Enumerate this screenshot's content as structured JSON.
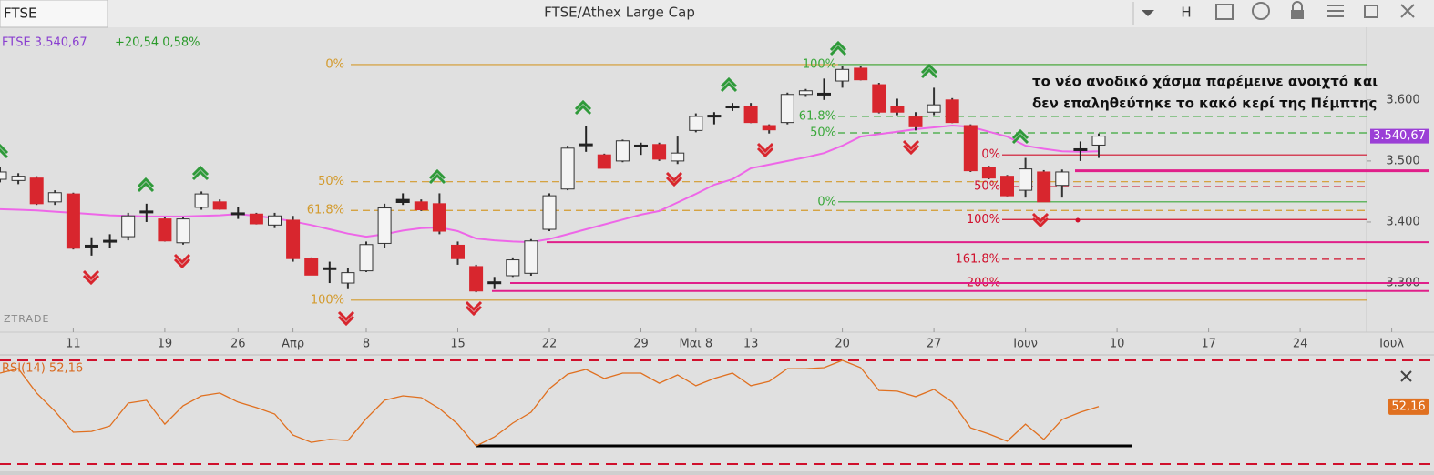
{
  "toolbar": {
    "tab": "FTSE",
    "title": "FTSE/Athex Large Cap",
    "button": "H"
  },
  "watermark": "ZTRADE",
  "chart_data": [
    {
      "type": "candlestick",
      "legend": {
        "symbol": "FTSE 3.540,67",
        "change": "+20,54 0,58%"
      },
      "categories": [
        null,
        null,
        null,
        null,
        "11",
        null,
        null,
        null,
        null,
        "19",
        null,
        null,
        null,
        "26",
        null,
        null,
        "Απρ",
        null,
        null,
        null,
        "8",
        null,
        null,
        null,
        null,
        "15",
        null,
        null,
        null,
        null,
        "22",
        null,
        null,
        null,
        null,
        "29",
        null,
        null,
        "Μαι 8",
        null,
        null,
        "13",
        null,
        null,
        null,
        null,
        "20",
        null,
        null,
        null,
        null,
        "27",
        null,
        null,
        null,
        null,
        "Ιουν",
        null,
        null,
        null,
        null,
        "10",
        null,
        null,
        null,
        null,
        "17",
        null,
        null,
        null,
        null,
        "24",
        null,
        null,
        null,
        null,
        "Ιουλ"
      ],
      "open": [
        3470,
        3468,
        3472,
        3433,
        3446,
        3362,
        3367,
        3376,
        3415,
        3405,
        3366,
        3424,
        3433,
        3415,
        3413,
        3395,
        3403,
        3340,
        3322,
        3300,
        3320,
        3365,
        3432,
        3433,
        3430,
        3362,
        3327,
        3300,
        3312,
        3316,
        3388,
        3454,
        3525,
        3510,
        3500,
        3524,
        3527,
        3500,
        3550,
        3572,
        3588,
        3590,
        3558,
        3563,
        3609,
        3609,
        3631,
        3652,
        3625,
        3590,
        3572,
        3580,
        3600,
        3558,
        3490,
        3475,
        3452,
        3482,
        3460,
        3518,
        3526,
        null,
        null,
        null,
        null,
        null,
        null,
        null,
        null,
        null,
        null,
        null,
        null,
        null,
        null,
        null,
        null
      ],
      "high": [
        3490,
        3480,
        3475,
        3452,
        3448,
        3375,
        3380,
        3415,
        3430,
        3408,
        3408,
        3450,
        3437,
        3425,
        3415,
        3415,
        3410,
        3342,
        3335,
        3325,
        3368,
        3430,
        3447,
        3437,
        3447,
        3368,
        3330,
        3310,
        3342,
        3372,
        3447,
        3525,
        3557,
        3512,
        3535,
        3530,
        3530,
        3540,
        3578,
        3580,
        3595,
        3595,
        3560,
        3612,
        3618,
        3635,
        3655,
        3655,
        3628,
        3602,
        3580,
        3620,
        3603,
        3560,
        3492,
        3477,
        3505,
        3485,
        3486,
        3532,
        3545,
        null,
        null,
        null,
        null,
        null,
        null,
        null,
        null,
        null,
        null,
        null,
        null,
        null,
        null,
        null,
        null
      ],
      "low": [
        3465,
        3462,
        3428,
        3428,
        3355,
        3345,
        3358,
        3370,
        3400,
        3368,
        3363,
        3420,
        3420,
        3405,
        3396,
        3390,
        3335,
        3313,
        3300,
        3290,
        3318,
        3358,
        3428,
        3418,
        3380,
        3330,
        3285,
        3290,
        3310,
        3312,
        3385,
        3452,
        3515,
        3488,
        3498,
        3510,
        3500,
        3495,
        3547,
        3560,
        3582,
        3562,
        3545,
        3560,
        3605,
        3600,
        3620,
        3632,
        3578,
        3575,
        3550,
        3575,
        3562,
        3482,
        3470,
        3442,
        3440,
        3433,
        3440,
        3500,
        3505,
        null,
        null,
        null,
        null,
        null,
        null,
        null,
        null,
        null,
        null,
        null,
        null,
        null,
        null,
        null,
        null
      ],
      "close": [
        3482,
        3475,
        3430,
        3448,
        3357,
        3362,
        3370,
        3410,
        3418,
        3369,
        3405,
        3446,
        3421,
        3415,
        3397,
        3410,
        3340,
        3313,
        3325,
        3317,
        3363,
        3423,
        3437,
        3420,
        3385,
        3340,
        3287,
        3302,
        3338,
        3369,
        3443,
        3521,
        3528,
        3488,
        3533,
        3526,
        3503,
        3513,
        3573,
        3575,
        3590,
        3563,
        3551,
        3609,
        3615,
        3611,
        3650,
        3633,
        3580,
        3580,
        3556,
        3592,
        3563,
        3484,
        3472,
        3443,
        3487,
        3433,
        3482,
        3520,
        3540.67,
        null,
        null,
        null,
        null,
        null,
        null,
        null,
        null,
        null,
        null,
        null,
        null,
        null,
        null,
        null,
        null
      ],
      "colors": {
        "up": "#f4f4f4",
        "down": "#d8262e",
        "doji": "#222222",
        "outline": "#333333"
      },
      "ma": {
        "color": "#ee66e8",
        "values": [
          3421,
          3420,
          3419,
          3417,
          3415,
          3413,
          3411,
          3410,
          3409,
          3409,
          3409,
          3410,
          3411,
          3413,
          3410,
          3406,
          3401,
          3395,
          3388,
          3381,
          3376,
          3380,
          3386,
          3390,
          3391,
          3385,
          3373,
          3370,
          3368,
          3367,
          3372,
          3380,
          3388,
          3396,
          3404,
          3412,
          3418,
          3432,
          3446,
          3461,
          3470,
          3488,
          3494,
          3500,
          3506,
          3513,
          3525,
          3540,
          3544,
          3548,
          3552,
          3555,
          3558,
          3556,
          3548,
          3540,
          3525,
          3520,
          3516,
          3515,
          3516,
          null,
          null,
          null,
          null,
          null,
          null,
          null,
          null,
          null,
          null,
          null,
          null,
          null,
          null,
          null,
          null
        ]
      },
      "ylim": [
        3227,
        3719
      ],
      "yticks": [
        {
          "value": 3300,
          "label": "3.300"
        },
        {
          "value": 3400,
          "label": "3.400"
        },
        {
          "value": 3500,
          "label": "3.500"
        },
        {
          "value": 3600,
          "label": "3.600"
        }
      ],
      "grid": false,
      "last_label": "3.540,67",
      "last_color": "#9b3fd6",
      "fibonacci": [
        {
          "color": "#d39a2c",
          "levels": [
            {
              "price": 3658,
              "label": "0%",
              "dashed": false
            },
            {
              "price": 3466,
              "label": "50%",
              "dashed": true
            },
            {
              "price": 3419,
              "label": "61.8%",
              "dashed": true
            },
            {
              "price": 3272,
              "label": "100%",
              "dashed": false
            }
          ]
        },
        {
          "color": "#3aa83a",
          "levels": [
            {
              "price": 3658,
              "label": "100%",
              "dashed": false
            },
            {
              "price": 3573,
              "label": "61.8%",
              "dashed": true
            },
            {
              "price": 3546,
              "label": "50%",
              "dashed": true
            },
            {
              "price": 3433,
              "label": "0%",
              "dashed": false
            }
          ]
        },
        {
          "color": "#d0102c",
          "levels": [
            {
              "price": 3510,
              "label": "0%",
              "dashed": false
            },
            {
              "price": 3458,
              "label": "50%",
              "dashed": true
            },
            {
              "price": 3404,
              "label": "100%",
              "dashed": false
            },
            {
              "price": 3339,
              "label": "161.8%",
              "dashed": true
            },
            {
              "price": 3300,
              "label": "200%",
              "dashed": false
            }
          ]
        }
      ],
      "hlines": {
        "color": "#e0208a",
        "prices": [
          3484,
          3367,
          3300,
          3287
        ]
      },
      "annotation": [
        "το νέο ανοδικό χάσμα παρέμεινε ανοιχτό και",
        "δεν επαληθεύτηκε το κακό κερί της Πέμπτης"
      ]
    },
    {
      "type": "line",
      "label": "RSI(14) 52,16",
      "last_label": "52,16",
      "color": "#e07020",
      "values": [
        65.1,
        66.8,
        57.4,
        50.4,
        42.3,
        42.6,
        44.7,
        53.5,
        54.6,
        45.4,
        52.5,
        56.3,
        57.4,
        53.9,
        51.8,
        49.3,
        41.2,
        38.4,
        39.5,
        39.1,
        47.5,
        54.6,
        56.3,
        55.6,
        51.4,
        45.4,
        37.0,
        40.5,
        45.8,
        50.0,
        59.1,
        64.7,
        66.5,
        63.0,
        65.1,
        65.1,
        61.2,
        64.4,
        60.2,
        63.0,
        65.1,
        60.2,
        61.9,
        66.8,
        66.8,
        67.2,
        70.0,
        67.2,
        58.4,
        58.1,
        56.0,
        58.8,
        53.9,
        44.0,
        41.6,
        38.8,
        45.4,
        39.5,
        47.2,
        50.0,
        52.16,
        null,
        null,
        null,
        null,
        null,
        null,
        null,
        null,
        null,
        null,
        null,
        null,
        null,
        null,
        null,
        null
      ],
      "ylim": [
        27.2,
        72.1
      ],
      "levels": [
        70,
        30
      ],
      "level_color": "#d0102c"
    }
  ]
}
